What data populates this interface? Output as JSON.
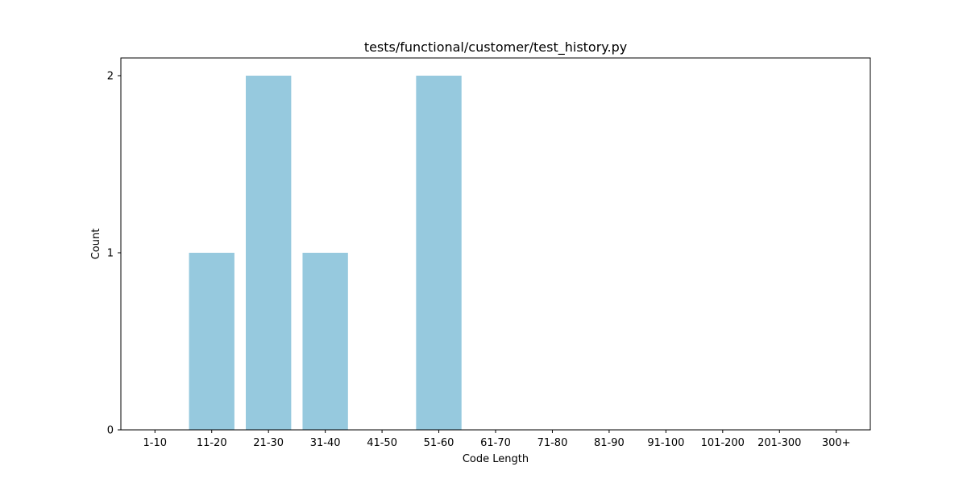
{
  "chart_data": {
    "type": "bar",
    "title": "tests/functional/customer/test_history.py",
    "xlabel": "Code Length",
    "ylabel": "Count",
    "categories": [
      "1-10",
      "11-20",
      "21-30",
      "31-40",
      "41-50",
      "51-60",
      "61-70",
      "71-80",
      "81-90",
      "91-100",
      "101-200",
      "201-300",
      "300+"
    ],
    "values": [
      0,
      1,
      2,
      1,
      0,
      2,
      0,
      0,
      0,
      0,
      0,
      0,
      0
    ],
    "yticks": [
      0,
      1,
      2
    ],
    "ylim": [
      0,
      2.1
    ],
    "bar_color": "#96c9de",
    "grid": false,
    "legend": false
  }
}
